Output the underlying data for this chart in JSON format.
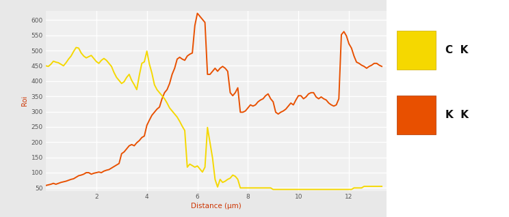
{
  "title": "",
  "xlabel": "Distance (μm)",
  "ylabel": "Roi",
  "xlabel_color": "#cc3300",
  "ylabel_color": "#cc3300",
  "xlim": [
    0,
    13.5
  ],
  "ylim": [
    40,
    630
  ],
  "yticks": [
    50,
    100,
    150,
    200,
    250,
    300,
    350,
    400,
    450,
    500,
    550,
    600
  ],
  "xticks": [
    2,
    4,
    6,
    8,
    10,
    12
  ],
  "plot_bg": "#f0f0f0",
  "fig_bg": "#e8e8e8",
  "legend_bg": "#ffffff",
  "grid_color": "#ffffff",
  "legend_labels": [
    "C  K",
    "K  K"
  ],
  "legend_colors": [
    "#f5d800",
    "#e85000"
  ],
  "ck_x": [
    0.0,
    0.1,
    0.2,
    0.3,
    0.4,
    0.5,
    0.6,
    0.7,
    0.8,
    0.9,
    1.0,
    1.1,
    1.2,
    1.3,
    1.4,
    1.5,
    1.6,
    1.7,
    1.8,
    1.9,
    2.0,
    2.1,
    2.2,
    2.3,
    2.4,
    2.5,
    2.6,
    2.7,
    2.8,
    2.9,
    3.0,
    3.1,
    3.2,
    3.3,
    3.4,
    3.5,
    3.6,
    3.7,
    3.8,
    3.9,
    4.0,
    4.1,
    4.2,
    4.3,
    4.4,
    4.5,
    4.6,
    4.7,
    4.8,
    4.9,
    5.0,
    5.1,
    5.2,
    5.3,
    5.4,
    5.5,
    5.6,
    5.7,
    5.8,
    5.9,
    6.0,
    6.1,
    6.2,
    6.3,
    6.4,
    6.5,
    6.6,
    6.7,
    6.8,
    6.9,
    7.0,
    7.1,
    7.2,
    7.3,
    7.4,
    7.5,
    7.6,
    7.7,
    7.8,
    7.9,
    8.0,
    8.1,
    8.2,
    8.3,
    8.4,
    8.5,
    8.6,
    8.7,
    8.8,
    8.9,
    9.0,
    9.1,
    9.2,
    9.3,
    9.4,
    9.5,
    9.6,
    9.7,
    9.8,
    9.9,
    10.0,
    10.1,
    10.2,
    10.3,
    10.4,
    10.5,
    10.6,
    10.7,
    10.8,
    10.9,
    11.0,
    11.1,
    11.2,
    11.3,
    11.4,
    11.5,
    11.6,
    11.7,
    11.8,
    11.9,
    12.0,
    12.1,
    12.2,
    12.3,
    12.4,
    12.5,
    12.6,
    12.7,
    12.8,
    12.9,
    13.0,
    13.1,
    13.2,
    13.3
  ],
  "ck_y": [
    450,
    448,
    455,
    465,
    462,
    460,
    455,
    450,
    460,
    472,
    482,
    497,
    510,
    508,
    492,
    482,
    476,
    480,
    484,
    474,
    464,
    458,
    468,
    474,
    468,
    458,
    448,
    428,
    412,
    402,
    392,
    398,
    412,
    422,
    402,
    388,
    372,
    418,
    458,
    463,
    498,
    456,
    426,
    388,
    372,
    362,
    352,
    342,
    328,
    312,
    302,
    292,
    282,
    268,
    252,
    238,
    118,
    128,
    123,
    118,
    122,
    112,
    102,
    118,
    248,
    198,
    148,
    78,
    53,
    78,
    68,
    72,
    78,
    82,
    92,
    88,
    78,
    50,
    50,
    50,
    50,
    50,
    50,
    50,
    50,
    50,
    50,
    50,
    50,
    50,
    45,
    45,
    45,
    45,
    45,
    45,
    45,
    45,
    45,
    45,
    45,
    45,
    45,
    45,
    45,
    45,
    45,
    45,
    45,
    45,
    45,
    45,
    45,
    45,
    45,
    45,
    45,
    45,
    45,
    45,
    45,
    45,
    50,
    50,
    50,
    50,
    55,
    55,
    55,
    55,
    55,
    55,
    55,
    55
  ],
  "kk_x": [
    0.0,
    0.1,
    0.2,
    0.3,
    0.4,
    0.5,
    0.6,
    0.7,
    0.8,
    0.9,
    1.0,
    1.1,
    1.2,
    1.3,
    1.4,
    1.5,
    1.6,
    1.7,
    1.8,
    1.9,
    2.0,
    2.1,
    2.2,
    2.3,
    2.4,
    2.5,
    2.6,
    2.7,
    2.8,
    2.9,
    3.0,
    3.1,
    3.2,
    3.3,
    3.4,
    3.5,
    3.6,
    3.7,
    3.8,
    3.9,
    4.0,
    4.1,
    4.2,
    4.3,
    4.4,
    4.5,
    4.6,
    4.7,
    4.8,
    4.9,
    5.0,
    5.1,
    5.2,
    5.3,
    5.4,
    5.5,
    5.6,
    5.7,
    5.8,
    5.9,
    6.0,
    6.1,
    6.2,
    6.3,
    6.4,
    6.5,
    6.6,
    6.7,
    6.8,
    6.9,
    7.0,
    7.1,
    7.2,
    7.3,
    7.4,
    7.5,
    7.6,
    7.7,
    7.8,
    7.9,
    8.0,
    8.1,
    8.2,
    8.3,
    8.4,
    8.5,
    8.6,
    8.7,
    8.8,
    8.9,
    9.0,
    9.1,
    9.2,
    9.3,
    9.4,
    9.5,
    9.6,
    9.7,
    9.8,
    9.9,
    10.0,
    10.1,
    10.2,
    10.3,
    10.4,
    10.5,
    10.6,
    10.7,
    10.8,
    10.9,
    11.0,
    11.1,
    11.2,
    11.3,
    11.4,
    11.5,
    11.6,
    11.7,
    11.8,
    11.9,
    12.0,
    12.1,
    12.2,
    12.3,
    12.4,
    12.5,
    12.6,
    12.7,
    12.8,
    12.9,
    13.0,
    13.1,
    13.2,
    13.3
  ],
  "kk_y": [
    58,
    60,
    62,
    65,
    62,
    65,
    68,
    70,
    72,
    75,
    78,
    80,
    85,
    90,
    92,
    95,
    100,
    100,
    95,
    98,
    100,
    102,
    100,
    105,
    108,
    110,
    115,
    120,
    125,
    130,
    162,
    168,
    178,
    188,
    192,
    188,
    198,
    205,
    215,
    220,
    255,
    272,
    288,
    298,
    308,
    315,
    342,
    362,
    372,
    392,
    422,
    442,
    472,
    478,
    472,
    468,
    482,
    488,
    492,
    582,
    622,
    612,
    602,
    592,
    422,
    422,
    432,
    442,
    432,
    442,
    448,
    442,
    432,
    362,
    352,
    362,
    378,
    298,
    298,
    302,
    312,
    322,
    318,
    322,
    332,
    338,
    342,
    352,
    358,
    342,
    332,
    298,
    292,
    298,
    302,
    308,
    318,
    328,
    322,
    338,
    352,
    352,
    342,
    348,
    358,
    362,
    362,
    348,
    342,
    348,
    342,
    338,
    328,
    322,
    318,
    322,
    342,
    552,
    562,
    548,
    522,
    508,
    482,
    462,
    458,
    452,
    448,
    442,
    448,
    452,
    458,
    458,
    452,
    448
  ]
}
